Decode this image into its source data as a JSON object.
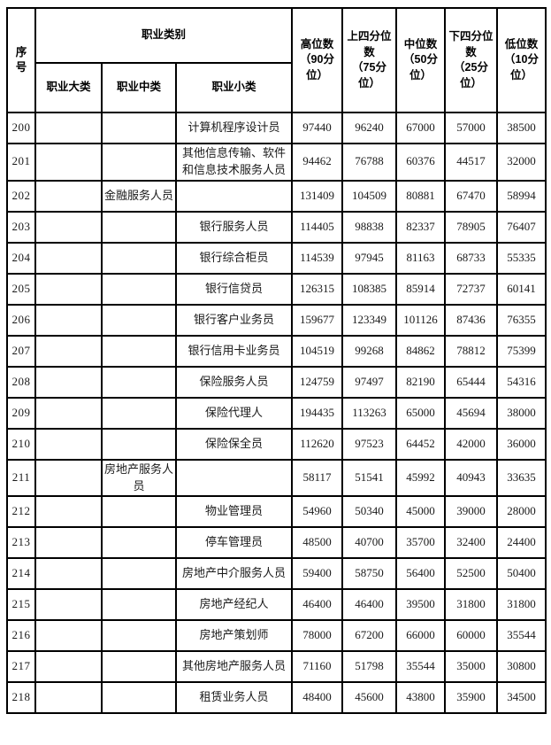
{
  "table": {
    "header": {
      "serial": "序\n号",
      "occupation_category": "职业类别",
      "major": "职业大类",
      "mid": "职业中类",
      "minor": "职业小类",
      "high": "高位数\n（90分\n位）",
      "q75": "上四分位\n数\n（75分\n位）",
      "median": "中位数\n（50分\n位）",
      "q25": "下四分位\n数\n（25分\n位）",
      "low": "低位数\n（10分\n位）"
    },
    "rows": [
      {
        "no": "200",
        "da": "",
        "zhong": "",
        "xiao": "计算机程序设计员",
        "v": [
          "97440",
          "96240",
          "67000",
          "57000",
          "38500"
        ]
      },
      {
        "no": "201",
        "da": "",
        "zhong": "",
        "xiao": "其他信息传输、软件和信息技术服务人员",
        "v": [
          "94462",
          "76788",
          "60376",
          "44517",
          "32000"
        ]
      },
      {
        "no": "202",
        "da": "",
        "zhong": "金融服务人员",
        "xiao": "",
        "v": [
          "131409",
          "104509",
          "80881",
          "67470",
          "58994"
        ]
      },
      {
        "no": "203",
        "da": "",
        "zhong": "",
        "xiao": "银行服务人员",
        "v": [
          "114405",
          "98838",
          "82337",
          "78905",
          "76407"
        ]
      },
      {
        "no": "204",
        "da": "",
        "zhong": "",
        "xiao": "银行综合柜员",
        "v": [
          "114539",
          "97945",
          "81163",
          "68733",
          "55335"
        ]
      },
      {
        "no": "205",
        "da": "",
        "zhong": "",
        "xiao": "银行信贷员",
        "v": [
          "126315",
          "108385",
          "85914",
          "72737",
          "60141"
        ]
      },
      {
        "no": "206",
        "da": "",
        "zhong": "",
        "xiao": "银行客户业务员",
        "v": [
          "159677",
          "123349",
          "101126",
          "87436",
          "76355"
        ]
      },
      {
        "no": "207",
        "da": "",
        "zhong": "",
        "xiao": "银行信用卡业务员",
        "v": [
          "104519",
          "99268",
          "84862",
          "78812",
          "75399"
        ]
      },
      {
        "no": "208",
        "da": "",
        "zhong": "",
        "xiao": "保险服务人员",
        "v": [
          "124759",
          "97497",
          "82190",
          "65444",
          "54316"
        ]
      },
      {
        "no": "209",
        "da": "",
        "zhong": "",
        "xiao": "保险代理人",
        "v": [
          "194435",
          "113263",
          "65000",
          "45694",
          "38000"
        ]
      },
      {
        "no": "210",
        "da": "",
        "zhong": "",
        "xiao": "保险保全员",
        "v": [
          "112620",
          "97523",
          "64452",
          "42000",
          "36000"
        ]
      },
      {
        "no": "211",
        "da": "",
        "zhong": "房地产服务人员",
        "xiao": "",
        "v": [
          "58117",
          "51541",
          "45992",
          "40943",
          "33635"
        ]
      },
      {
        "no": "212",
        "da": "",
        "zhong": "",
        "xiao": "物业管理员",
        "v": [
          "54960",
          "50340",
          "45000",
          "39000",
          "28000"
        ]
      },
      {
        "no": "213",
        "da": "",
        "zhong": "",
        "xiao": "停车管理员",
        "v": [
          "48500",
          "40700",
          "35700",
          "32400",
          "24400"
        ]
      },
      {
        "no": "214",
        "da": "",
        "zhong": "",
        "xiao": "房地产中介服务人员",
        "v": [
          "59400",
          "58750",
          "56400",
          "52500",
          "50400"
        ]
      },
      {
        "no": "215",
        "da": "",
        "zhong": "",
        "xiao": "房地产经纪人",
        "v": [
          "46400",
          "46400",
          "39500",
          "31800",
          "31800"
        ]
      },
      {
        "no": "216",
        "da": "",
        "zhong": "",
        "xiao": "房地产策划师",
        "v": [
          "78000",
          "67200",
          "66000",
          "60000",
          "35544"
        ]
      },
      {
        "no": "217",
        "da": "",
        "zhong": "",
        "xiao": "其他房地产服务人员",
        "v": [
          "71160",
          "51798",
          "35544",
          "35000",
          "30800"
        ]
      },
      {
        "no": "218",
        "da": "",
        "zhong": "",
        "xiao": "租赁业务人员",
        "v": [
          "48400",
          "45600",
          "43800",
          "35900",
          "34500"
        ]
      }
    ]
  },
  "colors": {
    "border": "#000000",
    "text": "#1a1a1a",
    "background": "#ffffff"
  }
}
